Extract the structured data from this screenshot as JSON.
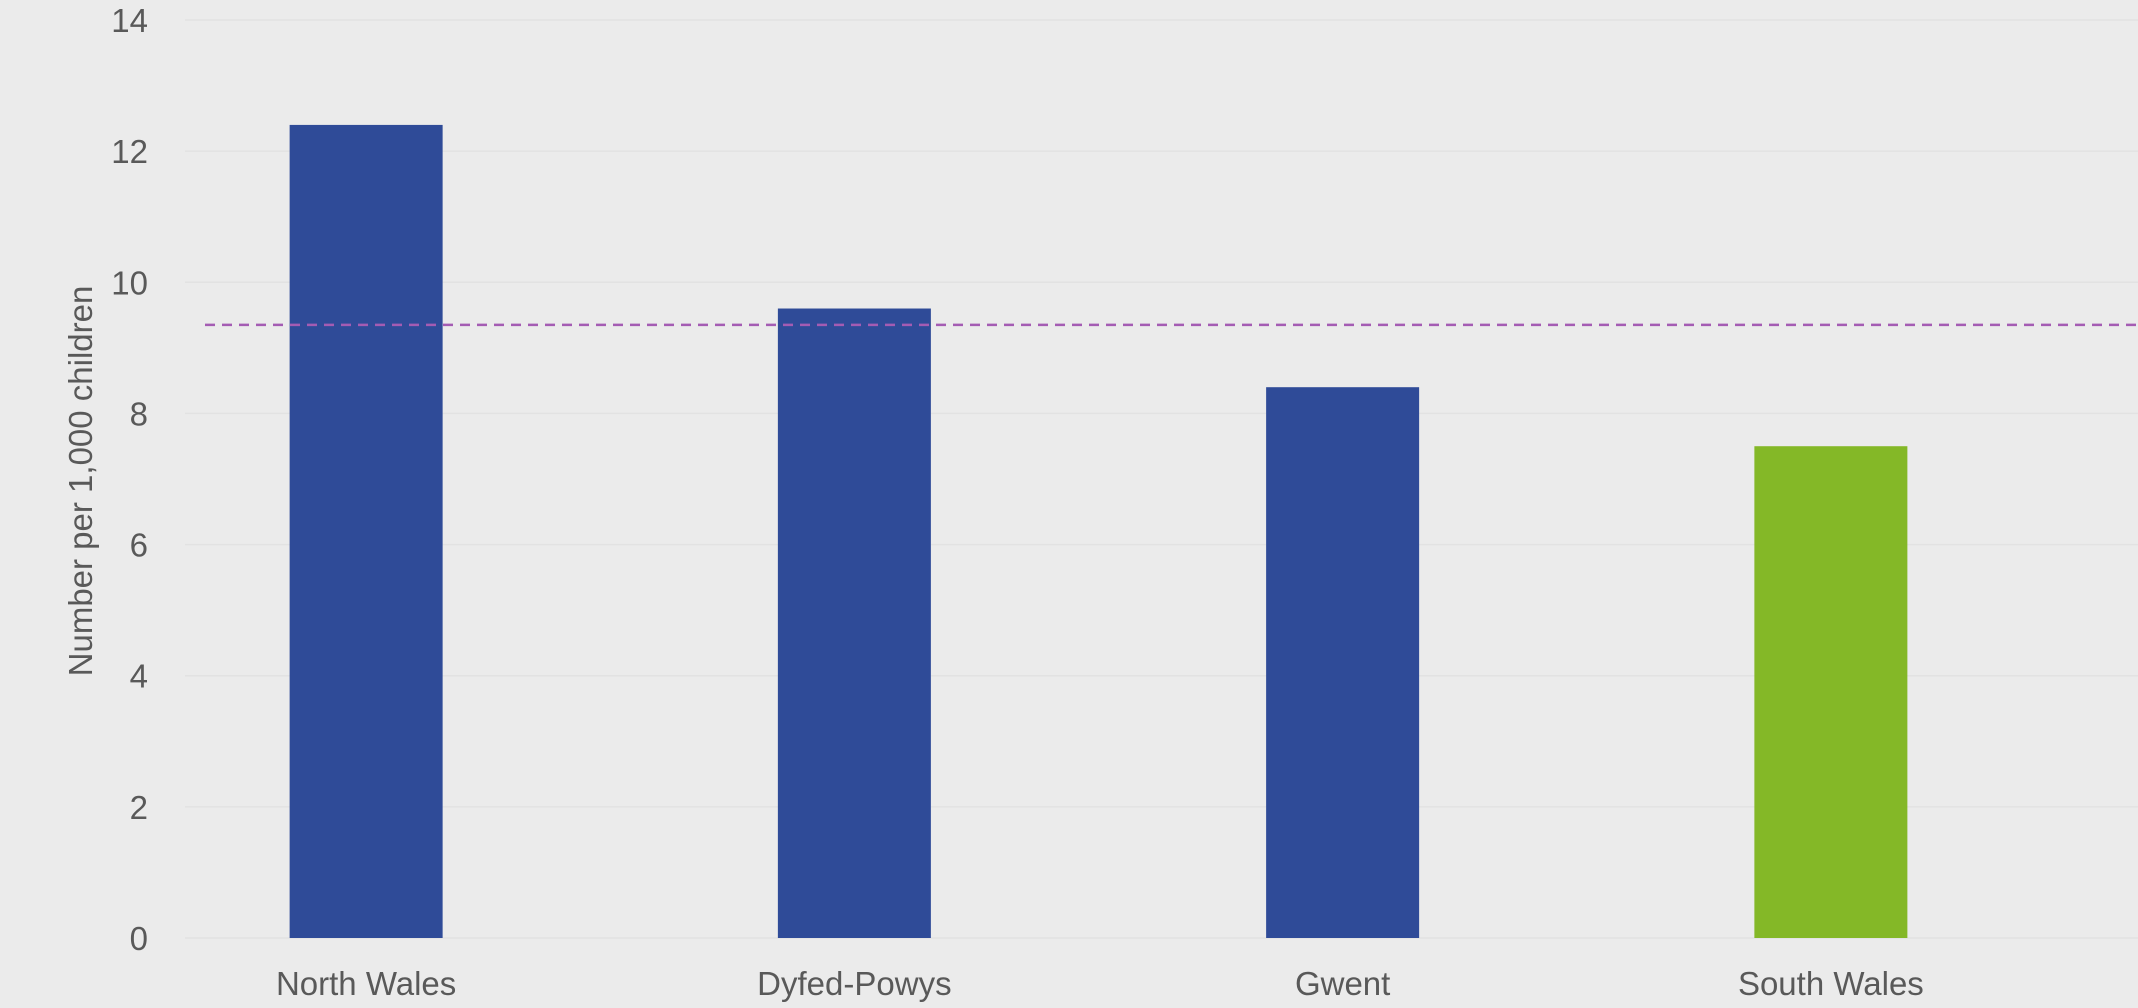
{
  "chart_data": {
    "type": "bar",
    "title": "",
    "xlabel": "",
    "ylabel": "Number per 1,000 children",
    "categories": [
      "North Wales",
      "Dyfed-Powys",
      "Gwent",
      "South Wales"
    ],
    "values": [
      12.4,
      9.6,
      8.4,
      7.5
    ],
    "bar_colors": [
      "#2f4b98",
      "#2f4b98",
      "#2f4b98",
      "#84b827"
    ],
    "ylim": [
      0,
      14
    ],
    "yticks": [
      0,
      2,
      4,
      6,
      8,
      10,
      12,
      14
    ],
    "reference_line": {
      "value": 9.35,
      "color": "#a45cb3",
      "style": "dashed"
    },
    "grid": true,
    "legend": "none"
  }
}
